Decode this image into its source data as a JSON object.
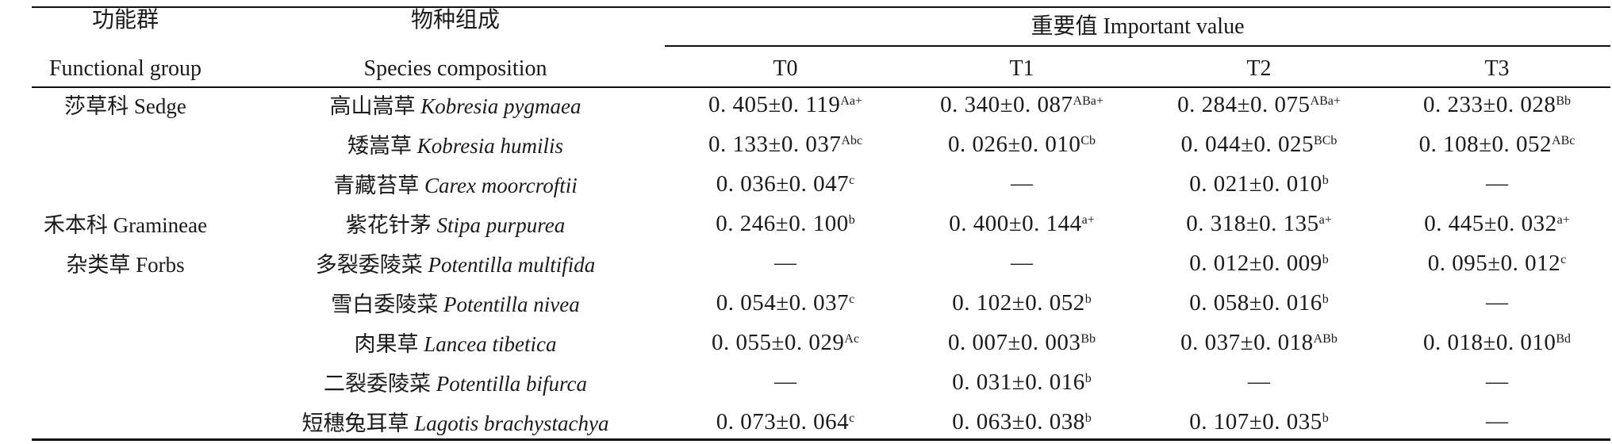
{
  "header": {
    "group_zh": "功能群",
    "group_en": "Functional group",
    "species_zh": "物种组成",
    "species_en": "Species composition",
    "value_title": "重要值 Important value",
    "treatments": [
      "T0",
      "T1",
      "T2",
      "T3"
    ]
  },
  "groups": [
    "莎草科 Sedge",
    "禾本科 Gramineae",
    "杂类草 Forbs"
  ],
  "rows": [
    {
      "zh": "高山嵩草",
      "latin": "Kobresia pygmaea",
      "cells": [
        {
          "v": "0. 405±0. 119",
          "s": "Aa+"
        },
        {
          "v": "0. 340±0. 087",
          "s": "ABa+"
        },
        {
          "v": "0. 284±0. 075",
          "s": "ABa+"
        },
        {
          "v": "0. 233±0. 028",
          "s": "Bb"
        }
      ]
    },
    {
      "zh": "矮嵩草",
      "latin": "Kobresia humilis",
      "cells": [
        {
          "v": "0. 133±0. 037",
          "s": "Abc"
        },
        {
          "v": "0. 026±0. 010",
          "s": "Cb"
        },
        {
          "v": "0. 044±0. 025",
          "s": "BCb"
        },
        {
          "v": "0. 108±0. 052",
          "s": "ABc"
        }
      ]
    },
    {
      "zh": "青藏苔草",
      "latin": "Carex moorcroftii",
      "cells": [
        {
          "v": "0. 036±0. 047",
          "s": "c"
        },
        {
          "v": "—",
          "s": ""
        },
        {
          "v": "0. 021±0. 010",
          "s": "b"
        },
        {
          "v": "—",
          "s": ""
        }
      ]
    },
    {
      "zh": "紫花针茅",
      "latin": "Stipa purpurea",
      "cells": [
        {
          "v": "0. 246±0. 100",
          "s": "b"
        },
        {
          "v": "0. 400±0. 144",
          "s": "a+"
        },
        {
          "v": "0. 318±0. 135",
          "s": "a+"
        },
        {
          "v": "0. 445±0. 032",
          "s": "a+"
        }
      ]
    },
    {
      "zh": "多裂委陵菜",
      "latin": "Potentilla multifida",
      "cells": [
        {
          "v": "—",
          "s": ""
        },
        {
          "v": "—",
          "s": ""
        },
        {
          "v": "0. 012±0. 009",
          "s": "b"
        },
        {
          "v": "0. 095±0. 012",
          "s": "c"
        }
      ]
    },
    {
      "zh": "雪白委陵菜",
      "latin": "Potentilla nivea",
      "cells": [
        {
          "v": "0. 054±0. 037",
          "s": "c"
        },
        {
          "v": "0. 102±0. 052",
          "s": "b"
        },
        {
          "v": "0. 058±0. 016",
          "s": "b"
        },
        {
          "v": "—",
          "s": ""
        }
      ]
    },
    {
      "zh": "肉果草",
      "latin": "Lancea tibetica",
      "cells": [
        {
          "v": "0. 055±0. 029",
          "s": "Ac"
        },
        {
          "v": "0. 007±0. 003",
          "s": "Bb"
        },
        {
          "v": "0. 037±0. 018",
          "s": "ABb"
        },
        {
          "v": "0. 018±0. 010",
          "s": "Bd"
        }
      ]
    },
    {
      "zh": "二裂委陵菜",
      "latin": "Potentilla bifurca",
      "cells": [
        {
          "v": "—",
          "s": ""
        },
        {
          "v": "0. 031±0. 016",
          "s": "b"
        },
        {
          "v": "—",
          "s": ""
        },
        {
          "v": "—",
          "s": ""
        }
      ]
    },
    {
      "zh": "短穗兔耳草",
      "latin": "Lagotis brachystachya",
      "cells": [
        {
          "v": "0. 073±0. 064",
          "s": "c"
        },
        {
          "v": "0. 063±0. 038",
          "s": "b"
        },
        {
          "v": "0. 107±0. 035",
          "s": "b"
        },
        {
          "v": "—",
          "s": ""
        }
      ]
    }
  ]
}
